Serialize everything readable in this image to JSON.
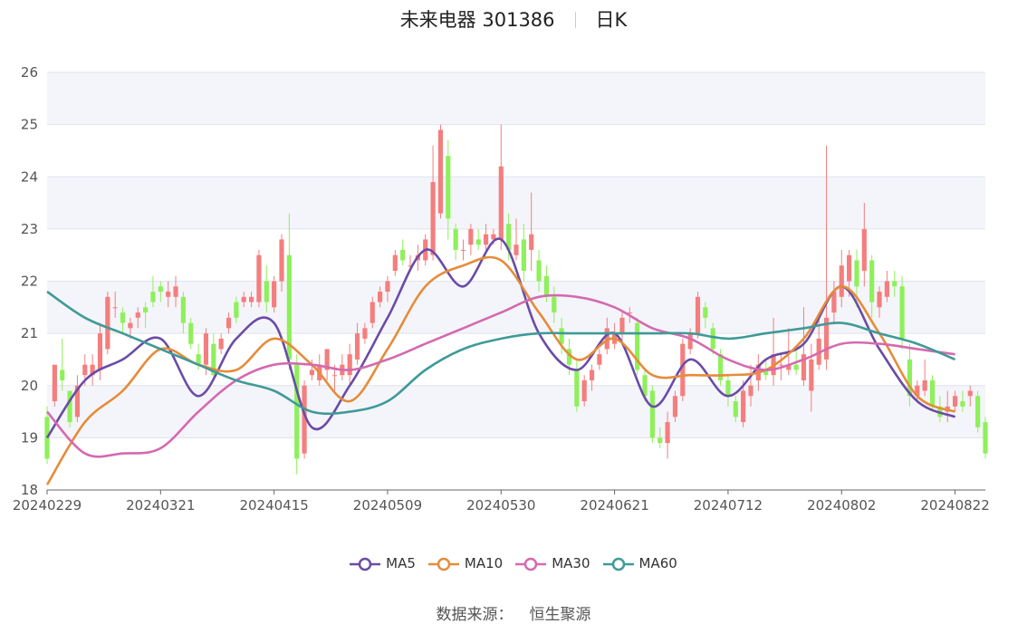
{
  "title": {
    "name": "未来电器 301386",
    "period": "日K"
  },
  "source": {
    "label": "数据来源：",
    "value": "恒生聚源"
  },
  "colors": {
    "up": "#f47e7e",
    "down": "#8ef05a",
    "MA5": "#6a4ca6",
    "MA10": "#e58c3a",
    "MA30": "#d46ab0",
    "MA60": "#3f9a98",
    "grid": "#dfe3ec",
    "band": "#f4f5fa"
  },
  "chart_data": {
    "type": "candlestick",
    "ylim": [
      18,
      26
    ],
    "yticks": [
      "18",
      "19",
      "20",
      "21",
      "22",
      "23",
      "24",
      "25",
      "26"
    ],
    "xticks": [
      "20240229",
      "20240321",
      "20240415",
      "20240509",
      "20240530",
      "20240621",
      "20240712",
      "20240802",
      "20240822"
    ],
    "xtick_index": [
      0,
      15,
      30,
      45,
      60,
      75,
      90,
      105,
      120
    ],
    "candles": [
      [
        19.4,
        18.6,
        19.6,
        18.5
      ],
      [
        19.7,
        20.4,
        20.4,
        19.6
      ],
      [
        20.3,
        20.1,
        20.9,
        19.9
      ],
      [
        19.9,
        19.3,
        19.9,
        19.2
      ],
      [
        19.4,
        20.0,
        20.2,
        19.3
      ],
      [
        20.2,
        20.4,
        20.6,
        20.0
      ],
      [
        20.2,
        20.4,
        20.6,
        20.0
      ],
      [
        20.3,
        21.0,
        21.2,
        20.1
      ],
      [
        20.7,
        21.7,
        21.8,
        20.6
      ],
      [
        21.5,
        21.5,
        21.8,
        21.3
      ],
      [
        21.4,
        21.2,
        21.5,
        21.0
      ],
      [
        21.1,
        21.2,
        21.3,
        20.9
      ],
      [
        21.3,
        21.4,
        21.5,
        21.1
      ],
      [
        21.5,
        21.4,
        21.6,
        21.1
      ],
      [
        21.8,
        21.6,
        22.1,
        21.5
      ],
      [
        21.9,
        21.8,
        22.0,
        21.6
      ],
      [
        21.7,
        21.8,
        22.0,
        21.5
      ],
      [
        21.7,
        21.9,
        22.1,
        21.5
      ],
      [
        21.7,
        21.2,
        21.8,
        21.0
      ],
      [
        21.2,
        20.8,
        21.3,
        20.7
      ],
      [
        20.6,
        20.4,
        20.8,
        20.3
      ],
      [
        20.4,
        21.0,
        21.1,
        20.2
      ],
      [
        20.8,
        20.2,
        21.0,
        20.1
      ],
      [
        20.7,
        20.9,
        21.0,
        20.6
      ],
      [
        21.1,
        21.3,
        21.4,
        21.0
      ],
      [
        21.6,
        21.3,
        21.7,
        21.2
      ],
      [
        21.6,
        21.7,
        21.8,
        21.5
      ],
      [
        21.6,
        21.7,
        21.8,
        21.5
      ],
      [
        21.6,
        22.5,
        22.6,
        21.5
      ],
      [
        22.0,
        21.6,
        22.3,
        21.4
      ],
      [
        21.5,
        22.0,
        22.1,
        21.4
      ],
      [
        22.0,
        22.8,
        22.9,
        21.8
      ],
      [
        22.5,
        20.5,
        23.3,
        20.3
      ],
      [
        20.4,
        18.6,
        20.6,
        18.3
      ],
      [
        18.7,
        20.0,
        20.1,
        18.6
      ],
      [
        20.2,
        20.3,
        20.5,
        20.1
      ],
      [
        20.1,
        20.4,
        20.6,
        20.0
      ],
      [
        20.3,
        20.7,
        20.7,
        20.1
      ],
      [
        20.2,
        20.2,
        20.4,
        19.9
      ],
      [
        20.2,
        20.4,
        20.6,
        20.1
      ],
      [
        20.2,
        20.6,
        20.8,
        20.0
      ],
      [
        20.5,
        21.0,
        21.2,
        20.4
      ],
      [
        20.9,
        21.1,
        21.2,
        20.8
      ],
      [
        21.2,
        21.6,
        21.7,
        21.1
      ],
      [
        21.6,
        21.8,
        21.9,
        21.5
      ],
      [
        21.8,
        22.0,
        22.1,
        21.6
      ],
      [
        22.2,
        22.5,
        22.6,
        22.1
      ],
      [
        22.6,
        22.4,
        22.8,
        22.3
      ],
      [
        22.3,
        22.3,
        22.5,
        22.2
      ],
      [
        22.4,
        22.5,
        22.7,
        22.2
      ],
      [
        22.4,
        22.8,
        22.9,
        22.3
      ],
      [
        22.5,
        23.9,
        24.6,
        22.4
      ],
      [
        23.3,
        24.9,
        25.0,
        23.2
      ],
      [
        24.4,
        23.2,
        24.7,
        22.8
      ],
      [
        23.0,
        22.6,
        23.1,
        22.4
      ],
      [
        22.6,
        22.6,
        22.8,
        22.4
      ],
      [
        22.7,
        23.0,
        23.1,
        22.5
      ],
      [
        22.8,
        22.7,
        23.0,
        22.6
      ],
      [
        22.7,
        22.9,
        23.1,
        22.6
      ],
      [
        22.8,
        22.9,
        23.0,
        22.7
      ],
      [
        22.8,
        24.2,
        25.0,
        22.6
      ],
      [
        23.1,
        22.6,
        23.3,
        22.4
      ],
      [
        22.5,
        22.7,
        23.2,
        22.4
      ],
      [
        22.8,
        22.2,
        23.1,
        22.0
      ],
      [
        22.6,
        22.9,
        23.7,
        22.2
      ],
      [
        22.4,
        22.0,
        22.6,
        21.8
      ],
      [
        22.1,
        21.7,
        22.3,
        21.6
      ],
      [
        21.7,
        21.4,
        21.9,
        21.2
      ],
      [
        21.1,
        20.8,
        21.3,
        20.6
      ],
      [
        20.7,
        20.4,
        20.9,
        20.2
      ],
      [
        20.3,
        19.6,
        20.5,
        19.5
      ],
      [
        19.7,
        20.1,
        20.2,
        19.6
      ],
      [
        20.1,
        20.3,
        20.4,
        19.9
      ],
      [
        20.4,
        20.6,
        20.7,
        20.3
      ],
      [
        20.7,
        21.1,
        21.3,
        20.6
      ],
      [
        20.8,
        21.0,
        21.2,
        20.7
      ],
      [
        21.0,
        21.3,
        21.4,
        20.8
      ],
      [
        21.4,
        21.4,
        21.5,
        21.2
      ],
      [
        21.2,
        20.3,
        21.3,
        20.2
      ],
      [
        20.2,
        19.8,
        20.3,
        19.7
      ],
      [
        19.9,
        19.0,
        20.0,
        18.9
      ],
      [
        19.0,
        18.9,
        19.2,
        18.8
      ],
      [
        18.9,
        19.3,
        19.5,
        18.6
      ],
      [
        19.4,
        19.8,
        19.9,
        19.3
      ],
      [
        19.8,
        20.8,
        20.9,
        19.7
      ],
      [
        20.7,
        21.0,
        21.1,
        20.6
      ],
      [
        21.0,
        21.7,
        21.8,
        20.9
      ],
      [
        21.5,
        21.3,
        21.6,
        21.1
      ],
      [
        21.1,
        20.7,
        21.2,
        20.6
      ],
      [
        20.6,
        20.1,
        20.7,
        20.0
      ],
      [
        20.1,
        19.8,
        20.2,
        19.6
      ],
      [
        19.7,
        19.4,
        19.8,
        19.3
      ],
      [
        19.3,
        19.9,
        20.1,
        19.2
      ],
      [
        19.8,
        20.0,
        20.4,
        19.6
      ],
      [
        20.1,
        20.4,
        20.6,
        19.9
      ],
      [
        20.3,
        20.2,
        20.5,
        20.1
      ],
      [
        20.2,
        20.6,
        21.3,
        20.0
      ],
      [
        20.4,
        20.4,
        20.6,
        20.1
      ],
      [
        20.3,
        20.4,
        21.1,
        20.2
      ],
      [
        20.4,
        20.3,
        20.7,
        20.2
      ],
      [
        20.1,
        20.6,
        21.5,
        20.0
      ],
      [
        19.9,
        20.5,
        20.8,
        19.5
      ],
      [
        20.4,
        20.9,
        21.3,
        20.3
      ],
      [
        20.5,
        21.3,
        24.6,
        20.3
      ],
      [
        21.4,
        21.8,
        22.0,
        21.2
      ],
      [
        21.7,
        22.3,
        22.6,
        21.5
      ],
      [
        22.0,
        22.5,
        22.6,
        21.7
      ],
      [
        22.4,
        21.9,
        22.6,
        21.5
      ],
      [
        22.2,
        23.0,
        23.5,
        21.9
      ],
      [
        22.4,
        21.6,
        22.5,
        21.3
      ],
      [
        21.5,
        21.8,
        21.9,
        21.3
      ],
      [
        21.7,
        22.0,
        22.2,
        21.6
      ],
      [
        22.0,
        21.9,
        22.2,
        21.7
      ],
      [
        21.9,
        20.9,
        22.1,
        20.7
      ],
      [
        20.5,
        19.8,
        20.8,
        19.6
      ],
      [
        19.8,
        20.0,
        20.1,
        19.7
      ],
      [
        19.9,
        20.1,
        20.5,
        19.8
      ],
      [
        20.1,
        19.6,
        20.2,
        19.5
      ],
      [
        19.6,
        19.4,
        19.8,
        19.3
      ],
      [
        19.5,
        19.6,
        19.9,
        19.3
      ],
      [
        19.6,
        19.8,
        19.9,
        19.5
      ],
      [
        19.7,
        19.6,
        19.9,
        19.5
      ],
      [
        19.8,
        19.9,
        20.0,
        19.6
      ],
      [
        19.8,
        19.2,
        19.9,
        19.1
      ],
      [
        19.3,
        18.7,
        19.4,
        18.6
      ]
    ],
    "series": [
      {
        "name": "MA5",
        "x": [
          0,
          5,
          10,
          15,
          20,
          25,
          30,
          35,
          40,
          45,
          50,
          55,
          60,
          65,
          70,
          75,
          80,
          85,
          90,
          95,
          100,
          105,
          110,
          115,
          120
        ],
        "values": [
          19.0,
          20.1,
          20.5,
          20.9,
          19.8,
          20.9,
          21.2,
          19.2,
          20.0,
          21.3,
          22.6,
          21.9,
          22.8,
          21.0,
          20.3,
          21.0,
          19.6,
          20.5,
          19.8,
          20.5,
          20.8,
          21.9,
          20.7,
          19.7,
          19.4
        ]
      },
      {
        "name": "MA10",
        "x": [
          0,
          5,
          10,
          15,
          20,
          25,
          30,
          35,
          40,
          45,
          50,
          55,
          60,
          65,
          70,
          75,
          80,
          85,
          90,
          95,
          100,
          105,
          110,
          115,
          120
        ],
        "values": [
          18.1,
          19.3,
          19.9,
          20.7,
          20.4,
          20.3,
          20.9,
          20.4,
          19.7,
          20.7,
          21.9,
          22.3,
          22.4,
          21.4,
          20.5,
          20.9,
          20.2,
          20.2,
          20.2,
          20.3,
          20.9,
          21.9,
          21.0,
          19.8,
          19.5
        ]
      },
      {
        "name": "MA30",
        "x": [
          0,
          5,
          10,
          15,
          20,
          25,
          30,
          35,
          40,
          45,
          50,
          55,
          60,
          65,
          70,
          75,
          80,
          85,
          90,
          95,
          100,
          105,
          110,
          115,
          120
        ],
        "values": [
          19.5,
          18.7,
          18.7,
          18.8,
          19.5,
          20.1,
          20.4,
          20.4,
          20.3,
          20.5,
          20.8,
          21.1,
          21.4,
          21.7,
          21.7,
          21.5,
          21.1,
          20.9,
          20.5,
          20.3,
          20.5,
          20.8,
          20.8,
          20.7,
          20.6
        ]
      },
      {
        "name": "MA60",
        "x": [
          0,
          5,
          10,
          15,
          20,
          25,
          30,
          35,
          40,
          45,
          50,
          55,
          60,
          65,
          70,
          75,
          80,
          85,
          90,
          95,
          100,
          105,
          110,
          115,
          120
        ],
        "values": [
          21.8,
          21.3,
          21.0,
          20.7,
          20.4,
          20.1,
          19.9,
          19.5,
          19.5,
          19.7,
          20.3,
          20.7,
          20.9,
          21.0,
          21.0,
          21.0,
          21.0,
          21.0,
          20.9,
          21.0,
          21.1,
          21.2,
          21.0,
          20.8,
          20.5
        ]
      }
    ]
  }
}
